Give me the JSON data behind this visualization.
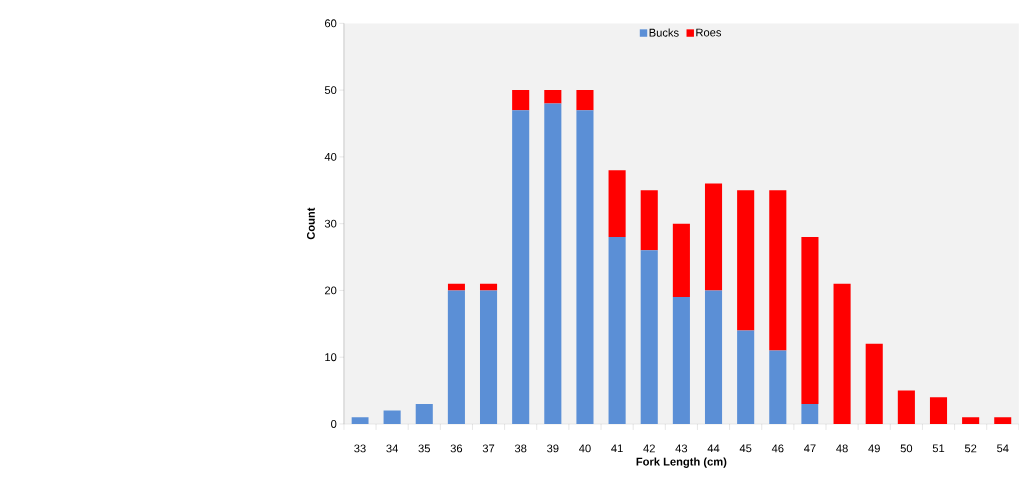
{
  "chart_data": {
    "type": "bar",
    "stacked": true,
    "xlabel": "Fork Length (cm)",
    "ylabel": "Count",
    "categories": [
      "33",
      "34",
      "35",
      "36",
      "37",
      "38",
      "39",
      "40",
      "41",
      "42",
      "43",
      "44",
      "45",
      "46",
      "47",
      "48",
      "49",
      "50",
      "51",
      "52",
      "54"
    ],
    "series": [
      {
        "name": "Bucks",
        "color": "#5b8fd6",
        "values": [
          1,
          2,
          3,
          20,
          20,
          47,
          48,
          47,
          28,
          26,
          19,
          20,
          14,
          11,
          3,
          0,
          0,
          0,
          0,
          0,
          0
        ]
      },
      {
        "name": "Roes",
        "color": "#ff0000",
        "values": [
          0,
          0,
          0,
          1,
          1,
          3,
          2,
          3,
          10,
          9,
          11,
          16,
          21,
          24,
          25,
          21,
          12,
          5,
          4,
          1,
          1
        ]
      }
    ],
    "ylim": [
      0,
      60
    ],
    "yticks": [
      0,
      10,
      20,
      30,
      40,
      50,
      60
    ],
    "legend": "top",
    "grid": false
  }
}
